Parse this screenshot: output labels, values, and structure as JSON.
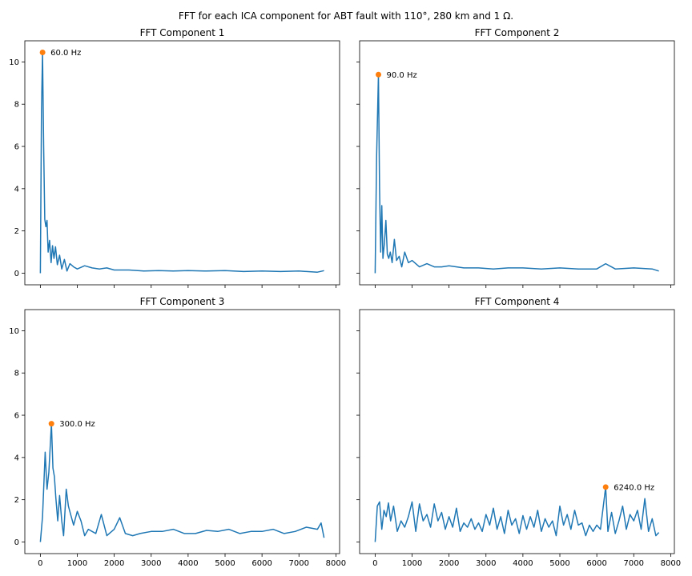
{
  "figure": {
    "suptitle": "FFT for each ICA component for ABT fault with 110°, 280 km and 1 Ω."
  },
  "chart_data": [
    {
      "type": "line",
      "title": "FFT Component 1",
      "xlabel": "",
      "ylabel": "",
      "xlim": [
        -420,
        8100
      ],
      "ylim": [
        -0.55,
        11.0
      ],
      "xticks": [
        0,
        1000,
        2000,
        3000,
        4000,
        5000,
        6000,
        7000,
        8000
      ],
      "yticks": [
        0,
        2,
        4,
        6,
        8,
        10
      ],
      "show_xticklabels": false,
      "show_yticklabels": true,
      "line_color": "#1f77b4",
      "x": [
        0,
        30,
        60,
        90,
        120,
        150,
        180,
        210,
        250,
        290,
        330,
        370,
        410,
        460,
        520,
        580,
        650,
        720,
        800,
        900,
        1000,
        1200,
        1400,
        1600,
        1800,
        2000,
        2400,
        2800,
        3200,
        3600,
        4000,
        4500,
        5000,
        5500,
        6000,
        6500,
        7000,
        7500,
        7680
      ],
      "y": [
        0,
        7.7,
        10.45,
        6.0,
        2.55,
        2.2,
        2.5,
        1.0,
        1.55,
        0.5,
        1.3,
        0.7,
        1.25,
        0.4,
        0.85,
        0.2,
        0.65,
        0.1,
        0.45,
        0.3,
        0.2,
        0.35,
        0.25,
        0.2,
        0.25,
        0.15,
        0.15,
        0.1,
        0.12,
        0.1,
        0.12,
        0.1,
        0.12,
        0.08,
        0.1,
        0.08,
        0.1,
        0.05,
        0.12
      ],
      "peak": {
        "x": 60,
        "y": 10.45,
        "label": "60.0 Hz",
        "color": "#ff7f0e"
      }
    },
    {
      "type": "line",
      "title": "FFT Component 2",
      "xlabel": "",
      "ylabel": "",
      "xlim": [
        -420,
        8100
      ],
      "ylim": [
        -0.55,
        11.0
      ],
      "xticks": [
        0,
        1000,
        2000,
        3000,
        4000,
        5000,
        6000,
        7000,
        8000
      ],
      "yticks": [
        0,
        2,
        4,
        6,
        8,
        10
      ],
      "show_xticklabels": false,
      "show_yticklabels": false,
      "line_color": "#1f77b4",
      "x": [
        0,
        40,
        90,
        120,
        150,
        180,
        210,
        250,
        290,
        330,
        370,
        410,
        460,
        520,
        580,
        650,
        720,
        800,
        900,
        1000,
        1200,
        1400,
        1600,
        1800,
        2000,
        2400,
        2800,
        3200,
        3600,
        4000,
        4500,
        5000,
        5500,
        6000,
        6240,
        6500,
        7000,
        7500,
        7680
      ],
      "y": [
        0,
        5.5,
        9.4,
        4.0,
        1.0,
        3.2,
        0.7,
        1.4,
        2.5,
        0.9,
        0.7,
        1.0,
        0.5,
        1.6,
        0.6,
        0.8,
        0.3,
        1.0,
        0.5,
        0.6,
        0.3,
        0.45,
        0.3,
        0.3,
        0.35,
        0.25,
        0.25,
        0.2,
        0.25,
        0.25,
        0.2,
        0.25,
        0.2,
        0.2,
        0.45,
        0.2,
        0.25,
        0.2,
        0.1
      ],
      "peak": {
        "x": 90,
        "y": 9.4,
        "label": "90.0 Hz",
        "color": "#ff7f0e"
      }
    },
    {
      "type": "line",
      "title": "FFT Component 3",
      "xlabel": "",
      "ylabel": "",
      "xlim": [
        -420,
        8100
      ],
      "ylim": [
        -0.55,
        11.0
      ],
      "xticks": [
        0,
        1000,
        2000,
        3000,
        4000,
        5000,
        6000,
        7000,
        8000
      ],
      "yticks": [
        0,
        2,
        4,
        6,
        8,
        10
      ],
      "show_xticklabels": true,
      "show_yticklabels": true,
      "line_color": "#1f77b4",
      "x": [
        0,
        60,
        130,
        180,
        230,
        300,
        340,
        380,
        420,
        470,
        520,
        580,
        630,
        700,
        760,
        820,
        900,
        1000,
        1100,
        1200,
        1300,
        1400,
        1500,
        1650,
        1800,
        2000,
        2150,
        2300,
        2500,
        2700,
        3000,
        3300,
        3600,
        3900,
        4200,
        4500,
        4800,
        5100,
        5400,
        5700,
        6000,
        6300,
        6600,
        6900,
        7200,
        7500,
        7600,
        7680
      ],
      "y": [
        0,
        1.2,
        4.25,
        2.5,
        3.3,
        5.6,
        3.5,
        3.1,
        2.1,
        1.0,
        2.2,
        1.0,
        0.3,
        2.5,
        1.7,
        1.3,
        0.8,
        1.45,
        1.0,
        0.3,
        0.6,
        0.5,
        0.4,
        1.3,
        0.3,
        0.6,
        1.15,
        0.4,
        0.3,
        0.4,
        0.5,
        0.5,
        0.6,
        0.4,
        0.4,
        0.55,
        0.5,
        0.6,
        0.4,
        0.5,
        0.5,
        0.6,
        0.4,
        0.5,
        0.7,
        0.6,
        0.9,
        0.2
      ],
      "peak": {
        "x": 300,
        "y": 5.6,
        "label": "300.0 Hz",
        "color": "#ff7f0e"
      }
    },
    {
      "type": "line",
      "title": "FFT Component 4",
      "xlabel": "",
      "ylabel": "",
      "xlim": [
        -420,
        8100
      ],
      "ylim": [
        -0.55,
        11.0
      ],
      "xticks": [
        0,
        1000,
        2000,
        3000,
        4000,
        5000,
        6000,
        7000,
        8000
      ],
      "yticks": [
        0,
        2,
        4,
        6,
        8,
        10
      ],
      "show_xticklabels": true,
      "show_yticklabels": false,
      "line_color": "#1f77b4",
      "x": [
        0,
        60,
        120,
        180,
        240,
        300,
        360,
        420,
        500,
        600,
        700,
        800,
        900,
        1000,
        1100,
        1200,
        1300,
        1400,
        1500,
        1600,
        1700,
        1800,
        1900,
        2000,
        2100,
        2200,
        2300,
        2400,
        2500,
        2600,
        2700,
        2800,
        2900,
        3000,
        3100,
        3200,
        3300,
        3400,
        3500,
        3600,
        3700,
        3800,
        3900,
        4000,
        4100,
        4200,
        4300,
        4400,
        4500,
        4600,
        4700,
        4800,
        4900,
        5000,
        5100,
        5200,
        5300,
        5400,
        5500,
        5600,
        5700,
        5800,
        5900,
        6000,
        6100,
        6240,
        6300,
        6400,
        6500,
        6600,
        6700,
        6800,
        6900,
        7000,
        7100,
        7200,
        7300,
        7400,
        7500,
        7600,
        7680
      ],
      "y": [
        0,
        1.7,
        1.9,
        0.6,
        1.5,
        1.2,
        1.85,
        1.0,
        1.7,
        0.5,
        1.0,
        0.7,
        1.2,
        1.9,
        0.5,
        1.8,
        1.0,
        1.3,
        0.7,
        1.8,
        1.0,
        1.4,
        0.6,
        1.2,
        0.7,
        1.6,
        0.5,
        0.9,
        0.7,
        1.1,
        0.6,
        0.9,
        0.5,
        1.3,
        0.8,
        1.6,
        0.6,
        1.2,
        0.4,
        1.5,
        0.8,
        1.1,
        0.4,
        1.25,
        0.6,
        1.2,
        0.7,
        1.5,
        0.5,
        1.1,
        0.7,
        1.0,
        0.3,
        1.7,
        0.8,
        1.3,
        0.6,
        1.5,
        0.8,
        0.9,
        0.3,
        0.8,
        0.5,
        0.8,
        0.6,
        2.6,
        0.5,
        1.4,
        0.4,
        1.0,
        1.7,
        0.6,
        1.3,
        1.0,
        1.5,
        0.6,
        2.05,
        0.5,
        1.1,
        0.3,
        0.45
      ],
      "peak": {
        "x": 6240,
        "y": 2.6,
        "label": "6240.0 Hz",
        "color": "#ff7f0e"
      }
    }
  ]
}
